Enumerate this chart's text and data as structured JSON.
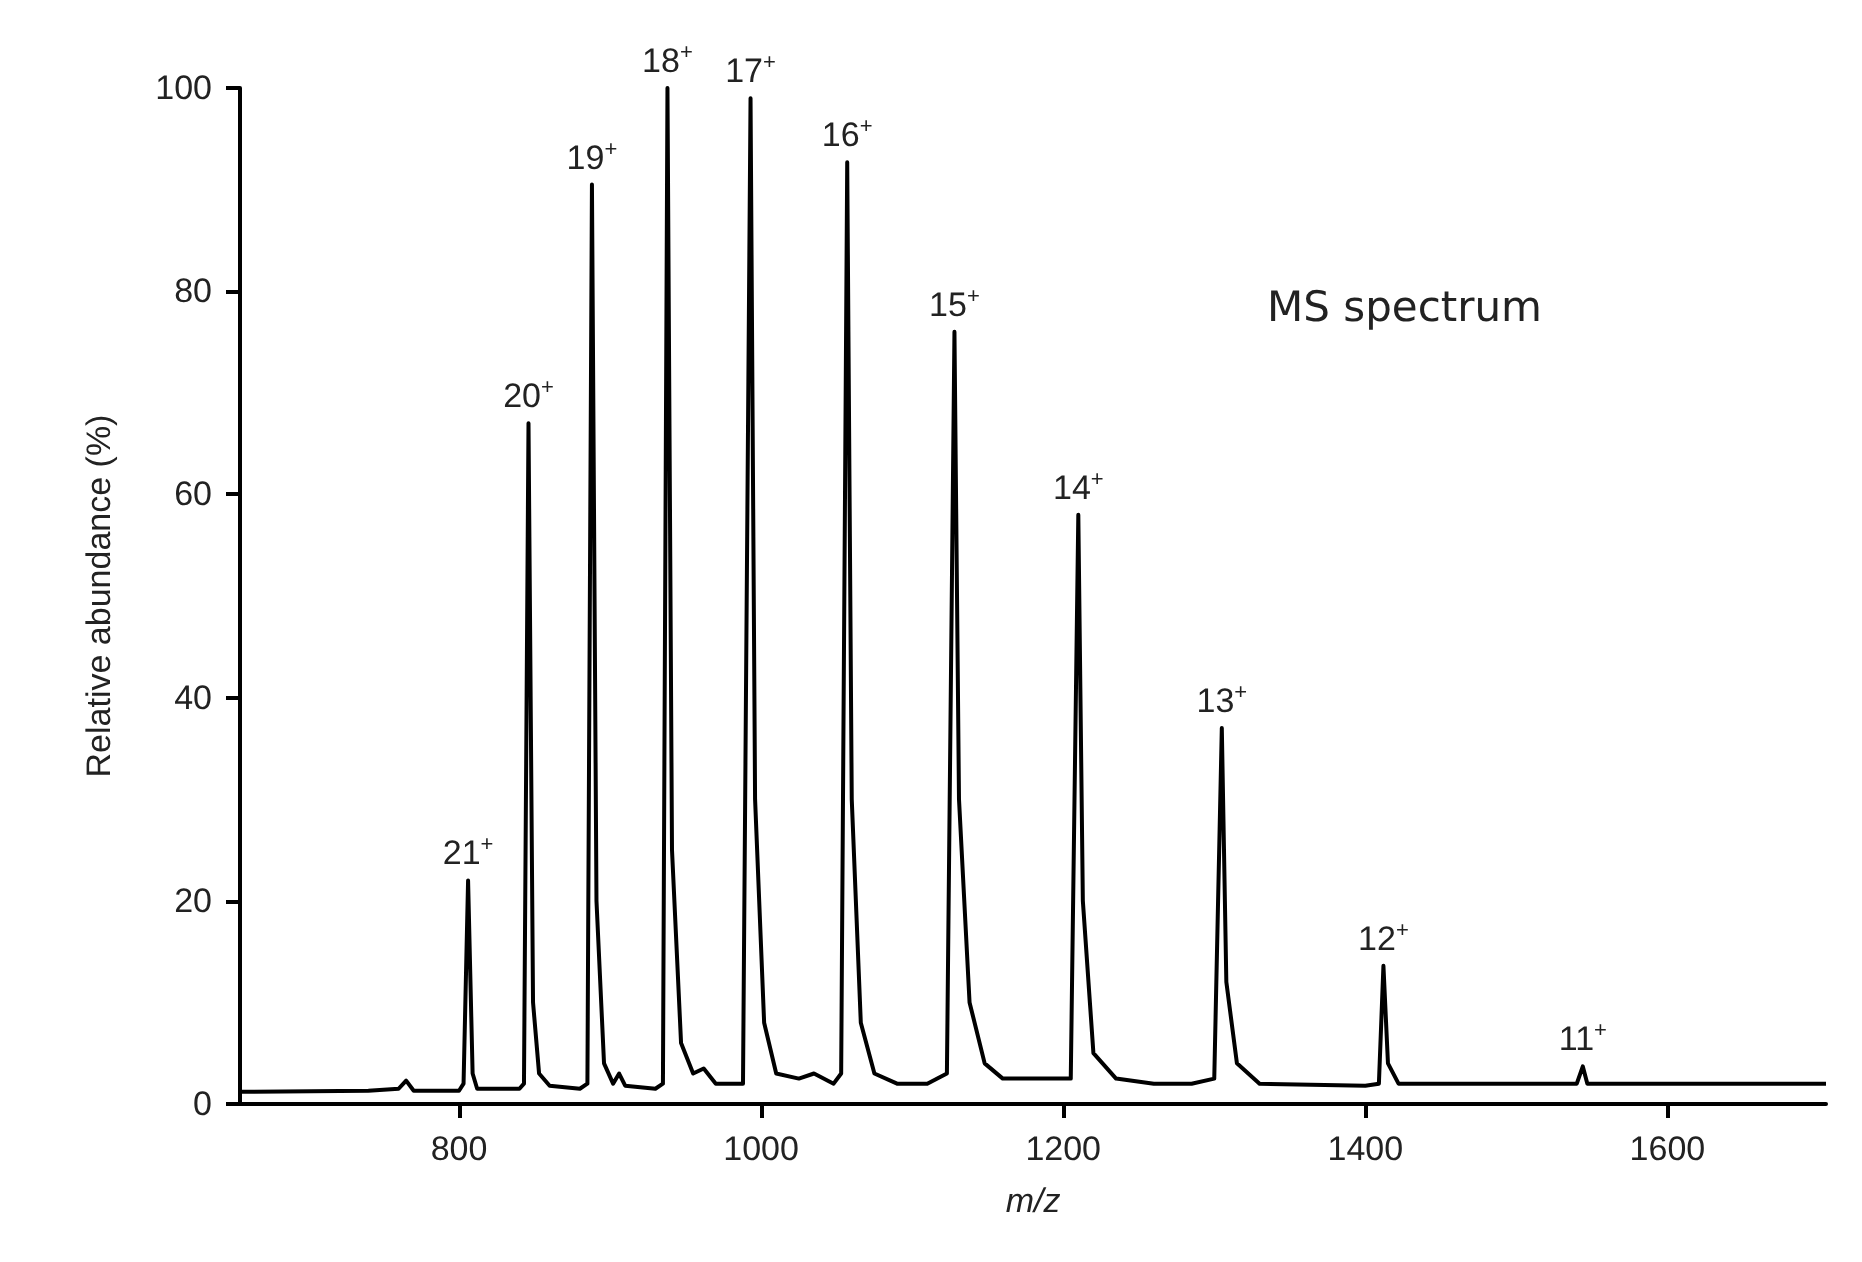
{
  "chart_data": {
    "type": "line",
    "xlabel": "m/z",
    "ylabel": "Relative abundance (%)",
    "xlim": [
      655,
      1705
    ],
    "xticks": [
      800,
      1000,
      1200,
      1400,
      1600
    ],
    "ylim": [
      0,
      100
    ],
    "yticks": [
      0,
      20,
      40,
      60,
      80,
      100
    ],
    "x": [
      655,
      740,
      760,
      765,
      770,
      800,
      803,
      806,
      809,
      812,
      840,
      843,
      846,
      849,
      853,
      860,
      880,
      885,
      888,
      891,
      896,
      902,
      906,
      910,
      930,
      935,
      938,
      941,
      947,
      955,
      962,
      970,
      988,
      993,
      996,
      1002,
      1010,
      1025,
      1035,
      1048,
      1053,
      1057,
      1060,
      1066,
      1075,
      1090,
      1110,
      1123,
      1128,
      1131,
      1138,
      1148,
      1160,
      1185,
      1205,
      1210,
      1213,
      1220,
      1235,
      1260,
      1285,
      1300,
      1305,
      1308,
      1315,
      1330,
      1400,
      1409,
      1412,
      1415,
      1422,
      1540,
      1544,
      1547,
      1600,
      1705
    ],
    "series": [
      {
        "color": "#000000",
        "values": [
          1.2,
          1.3,
          1.5,
          2.3,
          1.3,
          1.3,
          2,
          22,
          3,
          1.5,
          1.5,
          2,
          67,
          10,
          3,
          1.8,
          1.5,
          2,
          90.5,
          20,
          4,
          2,
          3,
          1.8,
          1.5,
          2,
          100,
          25,
          6,
          3,
          3.5,
          2,
          2,
          99,
          30,
          8,
          3,
          2.5,
          3,
          2,
          3,
          92.7,
          30,
          8,
          3,
          2,
          2,
          3,
          76,
          30,
          10,
          4,
          2.5,
          2.5,
          2.5,
          58,
          20,
          5,
          2.5,
          2,
          2,
          2.5,
          37,
          12,
          4,
          2,
          1.8,
          2,
          13.6,
          4,
          2,
          2,
          3.7,
          2,
          2,
          2
        ]
      }
    ],
    "annotations": [
      {
        "text": "21$^{+}$",
        "x": 806,
        "y": 22
      },
      {
        "text": "20$^{+}$",
        "x": 846,
        "y": 67
      },
      {
        "text": "19$^{+}$",
        "x": 888,
        "y": 90.5
      },
      {
        "text": "18$^{+}$",
        "x": 938,
        "y": 100
      },
      {
        "text": "17$^{+}$",
        "x": 993,
        "y": 99
      },
      {
        "text": "16$^{+}$",
        "x": 1057,
        "y": 92.7
      },
      {
        "text": "15$^{+}$",
        "x": 1128,
        "y": 76
      },
      {
        "text": "14$^{+}$",
        "x": 1210,
        "y": 58
      },
      {
        "text": "13$^{+}$",
        "x": 1305,
        "y": 37
      },
      {
        "text": "12$^{+}$",
        "x": 1412,
        "y": 13.6
      },
      {
        "text": "11$^{+}$",
        "x": 1544,
        "y": 3.7
      },
      "MS spectrum"
    ]
  }
}
